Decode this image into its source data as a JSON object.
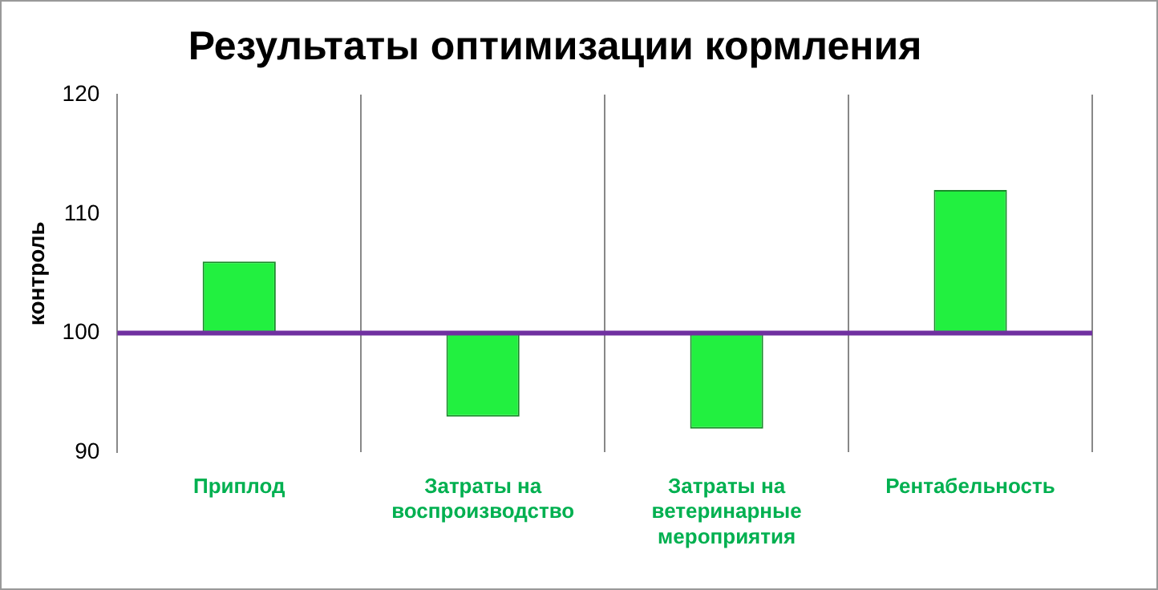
{
  "chart_data": {
    "type": "bar",
    "title": "Результаты оптимизации кормления",
    "ylabel": "контроль",
    "categories": [
      "Приплод",
      "Затраты на воспроизводство",
      "Затраты на ветеринарные мероприятия",
      "Рентабельность"
    ],
    "base": [
      100,
      100,
      100,
      100
    ],
    "values": [
      6,
      -7,
      -8,
      12
    ],
    "color": "#22f040",
    "ylim": [
      90,
      120
    ],
    "yticks": [
      90,
      100,
      110,
      120
    ],
    "grid": "x",
    "legend": false,
    "ref_lines": [
      {
        "axis": "y",
        "value": 100,
        "color": "#7030a0"
      }
    ]
  }
}
